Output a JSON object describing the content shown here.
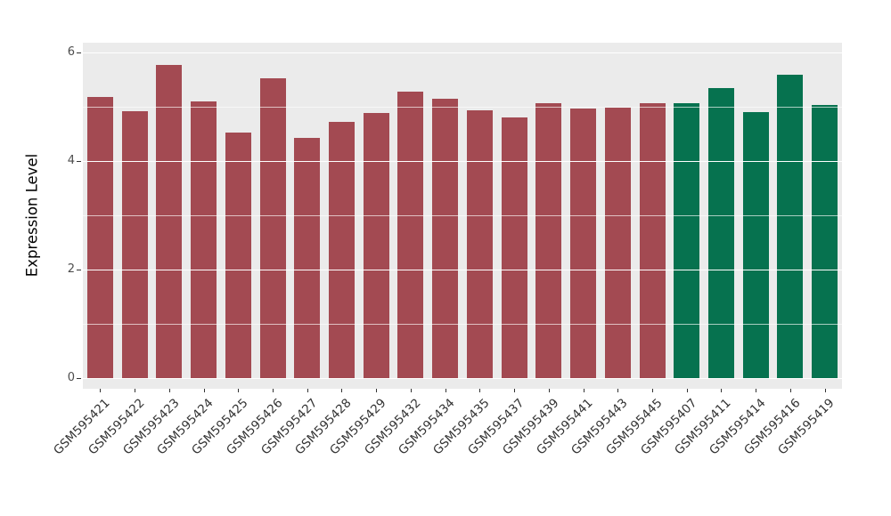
{
  "chart_data": {
    "type": "bar",
    "title": "",
    "xlabel": "",
    "ylabel": "Expression Level",
    "ylim": [
      0,
      6.2
    ],
    "yticks": [
      0,
      2,
      4,
      6
    ],
    "yticks_minor": [
      1,
      3,
      5
    ],
    "legend": "none",
    "grid": "white major and minor gridlines on gray panel",
    "panel_background": "#EBEBEB",
    "group_colors": {
      "group_a": "#A34A52",
      "group_b": "#06724F"
    },
    "categories": [
      "GSM595421",
      "GSM595422",
      "GSM595423",
      "GSM595424",
      "GSM595425",
      "GSM595426",
      "GSM595427",
      "GSM595428",
      "GSM595429",
      "GSM595432",
      "GSM595434",
      "GSM595435",
      "GSM595437",
      "GSM595439",
      "GSM595441",
      "GSM595443",
      "GSM595445",
      "GSM595407",
      "GSM595411",
      "GSM595414",
      "GSM595416",
      "GSM595419"
    ],
    "values": [
      5.18,
      4.92,
      5.77,
      5.1,
      4.52,
      5.52,
      4.43,
      4.72,
      4.88,
      5.28,
      5.14,
      4.94,
      4.8,
      5.07,
      4.97,
      4.99,
      5.06,
      5.06,
      5.34,
      4.91,
      5.59,
      5.04
    ],
    "colors": [
      "#A34A52",
      "#A34A52",
      "#A34A52",
      "#A34A52",
      "#A34A52",
      "#A34A52",
      "#A34A52",
      "#A34A52",
      "#A34A52",
      "#A34A52",
      "#A34A52",
      "#A34A52",
      "#A34A52",
      "#A34A52",
      "#A34A52",
      "#A34A52",
      "#A34A52",
      "#06724F",
      "#06724F",
      "#06724F",
      "#06724F",
      "#06724F"
    ]
  }
}
